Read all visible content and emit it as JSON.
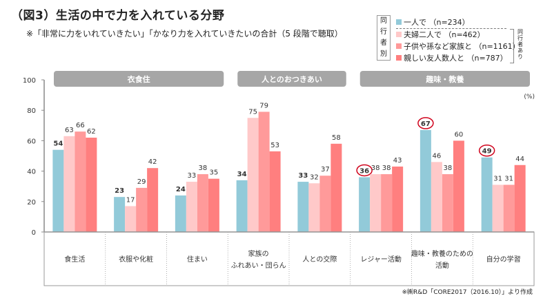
{
  "title": "（図3）生活の中で力を入れている分野",
  "subtitle": "※「非常に力をいれていきたい」「かなり力を入れていきたいの合計（5 段階で聴取）",
  "source": "※㈱R&D「CORE2017（2016.10）」より作成",
  "legend": {
    "side_label": [
      "同",
      "行",
      "者",
      "別"
    ],
    "group_note": "同行者あり",
    "items": [
      {
        "label": "一人で （n=234）",
        "color": "#92CAD9"
      },
      {
        "label": "夫婦二人で （n=462）",
        "color": "#FFC9C9"
      },
      {
        "label": "子供や孫など家族と （n=1161）",
        "color": "#FF9A9A"
      },
      {
        "label": "親しい友人数人と （n=787）",
        "color": "#FF7F7F"
      }
    ]
  },
  "chart_data": {
    "type": "bar",
    "title": "（図3）生活の中で力を入れている分野",
    "ylabel": "",
    "unit_label": "(%)",
    "ylim": [
      0,
      100
    ],
    "yticks": [
      0,
      20,
      40,
      60,
      80,
      100
    ],
    "grid": false,
    "legend_position": "top-right",
    "groups": [
      {
        "label": "衣食住",
        "span": [
          0,
          2
        ]
      },
      {
        "label": "人とのおつきあい",
        "span": [
          3,
          4
        ]
      },
      {
        "label": "趣味・教養",
        "span": [
          5,
          7
        ]
      }
    ],
    "categories": [
      "食生活",
      "衣服や化粧",
      "住まい",
      "家族の\nふれあい・団らん",
      "人との交際",
      "レジャー活動",
      "趣味・教養のための\n活動",
      "自分の学習"
    ],
    "series": [
      {
        "name": "一人で（n=234）",
        "color": "#92CAD9",
        "values": [
          54,
          23,
          24,
          34,
          33,
          36,
          67,
          49
        ]
      },
      {
        "name": "夫婦二人で（n=462）",
        "color": "#FFC9C9",
        "values": [
          63,
          17,
          33,
          75,
          32,
          38,
          46,
          31
        ]
      },
      {
        "name": "子供や孫など家族と（n=1161）",
        "color": "#FF9A9A",
        "values": [
          66,
          29,
          38,
          79,
          37,
          38,
          38,
          31
        ]
      },
      {
        "name": "親しい友人数人と（n=787）",
        "color": "#FF7F7F",
        "values": [
          62,
          42,
          35,
          53,
          58,
          43,
          60,
          44
        ]
      }
    ],
    "highlighted": [
      {
        "series": 0,
        "category": 5
      },
      {
        "series": 0,
        "category": 6
      },
      {
        "series": 0,
        "category": 7
      }
    ]
  }
}
